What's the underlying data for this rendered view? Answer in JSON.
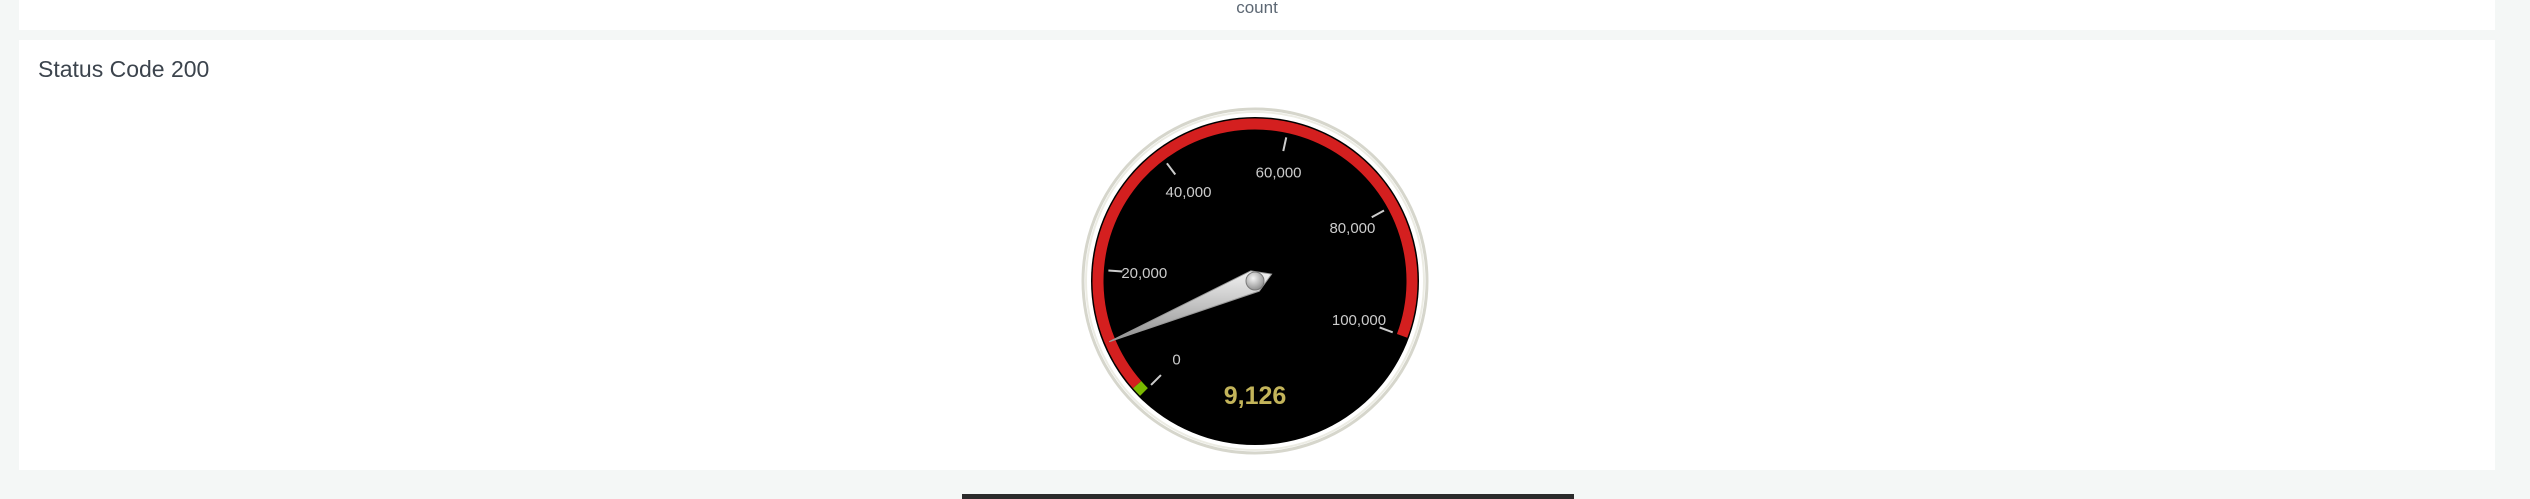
{
  "previous_panel": {
    "axis_label": "count"
  },
  "panel": {
    "title": "Status Code 200"
  },
  "chart_data": {
    "type": "gauge",
    "title": "Status Code 200",
    "value": 9126,
    "value_label": "9,126",
    "min": 0,
    "max": 110000,
    "ticks": [
      0,
      20000,
      40000,
      60000,
      80000,
      100000
    ],
    "tick_labels": [
      "0",
      "20,000",
      "40,000",
      "60,000",
      "80,000",
      "100,000"
    ],
    "ranges": [
      {
        "from": 0,
        "to": 1500,
        "color": "#7ab800"
      },
      {
        "from": 1500,
        "to": 100000,
        "color": "#d41f1f"
      }
    ],
    "colors": {
      "dial": "#000000",
      "bezel": "#ffffff",
      "tick": "#cccccc",
      "label": "#cccccc",
      "value_text": "#c3b45a",
      "needle": "#cfcfcf"
    }
  }
}
